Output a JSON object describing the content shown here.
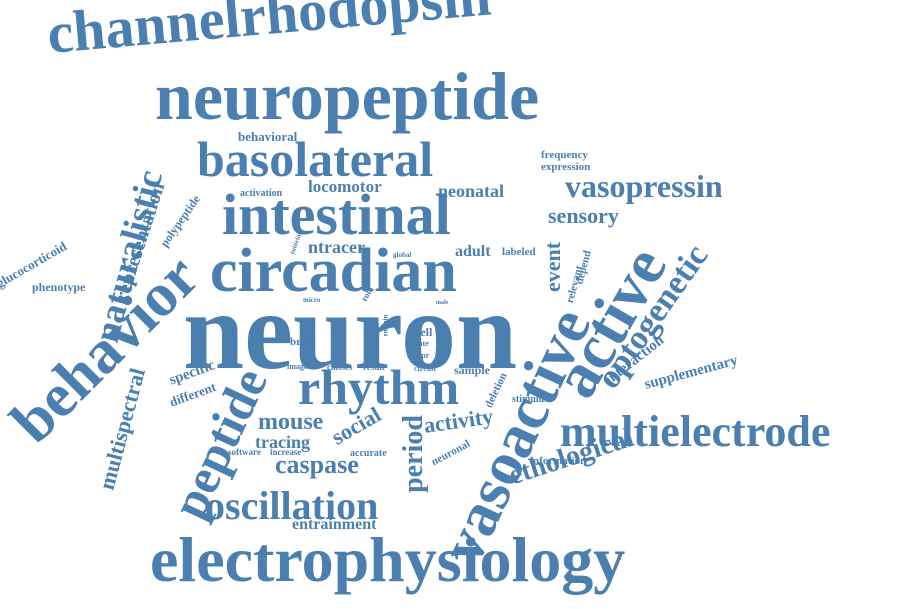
{
  "cloud": {
    "color": "#4a7fb0",
    "words": {
      "neuron": "neuron",
      "vasoactive": "vasoactive",
      "active": "active",
      "neuropeptide": "neuropeptide",
      "electrophysiology": "electrophysiology",
      "channelrhodopsin": "channelrhodopsin",
      "circadian": "circadian",
      "intestinal": "intestinal",
      "basolateral": "basolateral",
      "behavior": "behavior",
      "multielectrode": "multielectrode",
      "rhythm": "rhythm",
      "peptide": "peptide",
      "oscillation": "oscillation",
      "naturalistic": "naturalistic",
      "optogenetic": "optogenetic",
      "vasopressin": "vasopressin",
      "ethological": "ethological",
      "multispectral": "multispectral",
      "representation": "representation",
      "caspase": "caspase",
      "mouse": "mouse",
      "period": "period",
      "sensory": "sensory",
      "event": "event",
      "activity": "activity",
      "social": "social",
      "tracing": "tracing",
      "entrainment": "entrainment",
      "locomotor": "locomotor",
      "neonatal": "neonatal",
      "ntracer": "ntracer",
      "adult": "adult",
      "labeled": "labeled",
      "behavioral": "behavioral",
      "interaction": "interaction",
      "supplementary": "supplementary",
      "glucocorticoid": "glucocorticoid",
      "polypeptide": "polypeptide",
      "phenotype": "phenotype",
      "specific": "specific",
      "different": "different",
      "frequency": "frequency",
      "expression": "expression",
      "activation": "activation",
      "neuronal": "neuronal",
      "information": "information",
      "depend": "depend",
      "relevant": "relevant",
      "brain": "brain",
      "cell": "cell",
      "sample": "sample",
      "deletion": "deletion",
      "stimulus": "stimulus",
      "software": "software",
      "increase": "increase",
      "accurate": "accurate",
      "classes": "classes",
      "result": "result",
      "image": "image",
      "circuit": "circuit",
      "available": "available",
      "micro": "micro",
      "role": "role",
      "entrain": "entrain",
      "rate": "rate",
      "vipr": "vipr",
      "firing": "firing",
      "male": "male",
      "tutorial": "tutorial",
      "global": "global"
    }
  }
}
